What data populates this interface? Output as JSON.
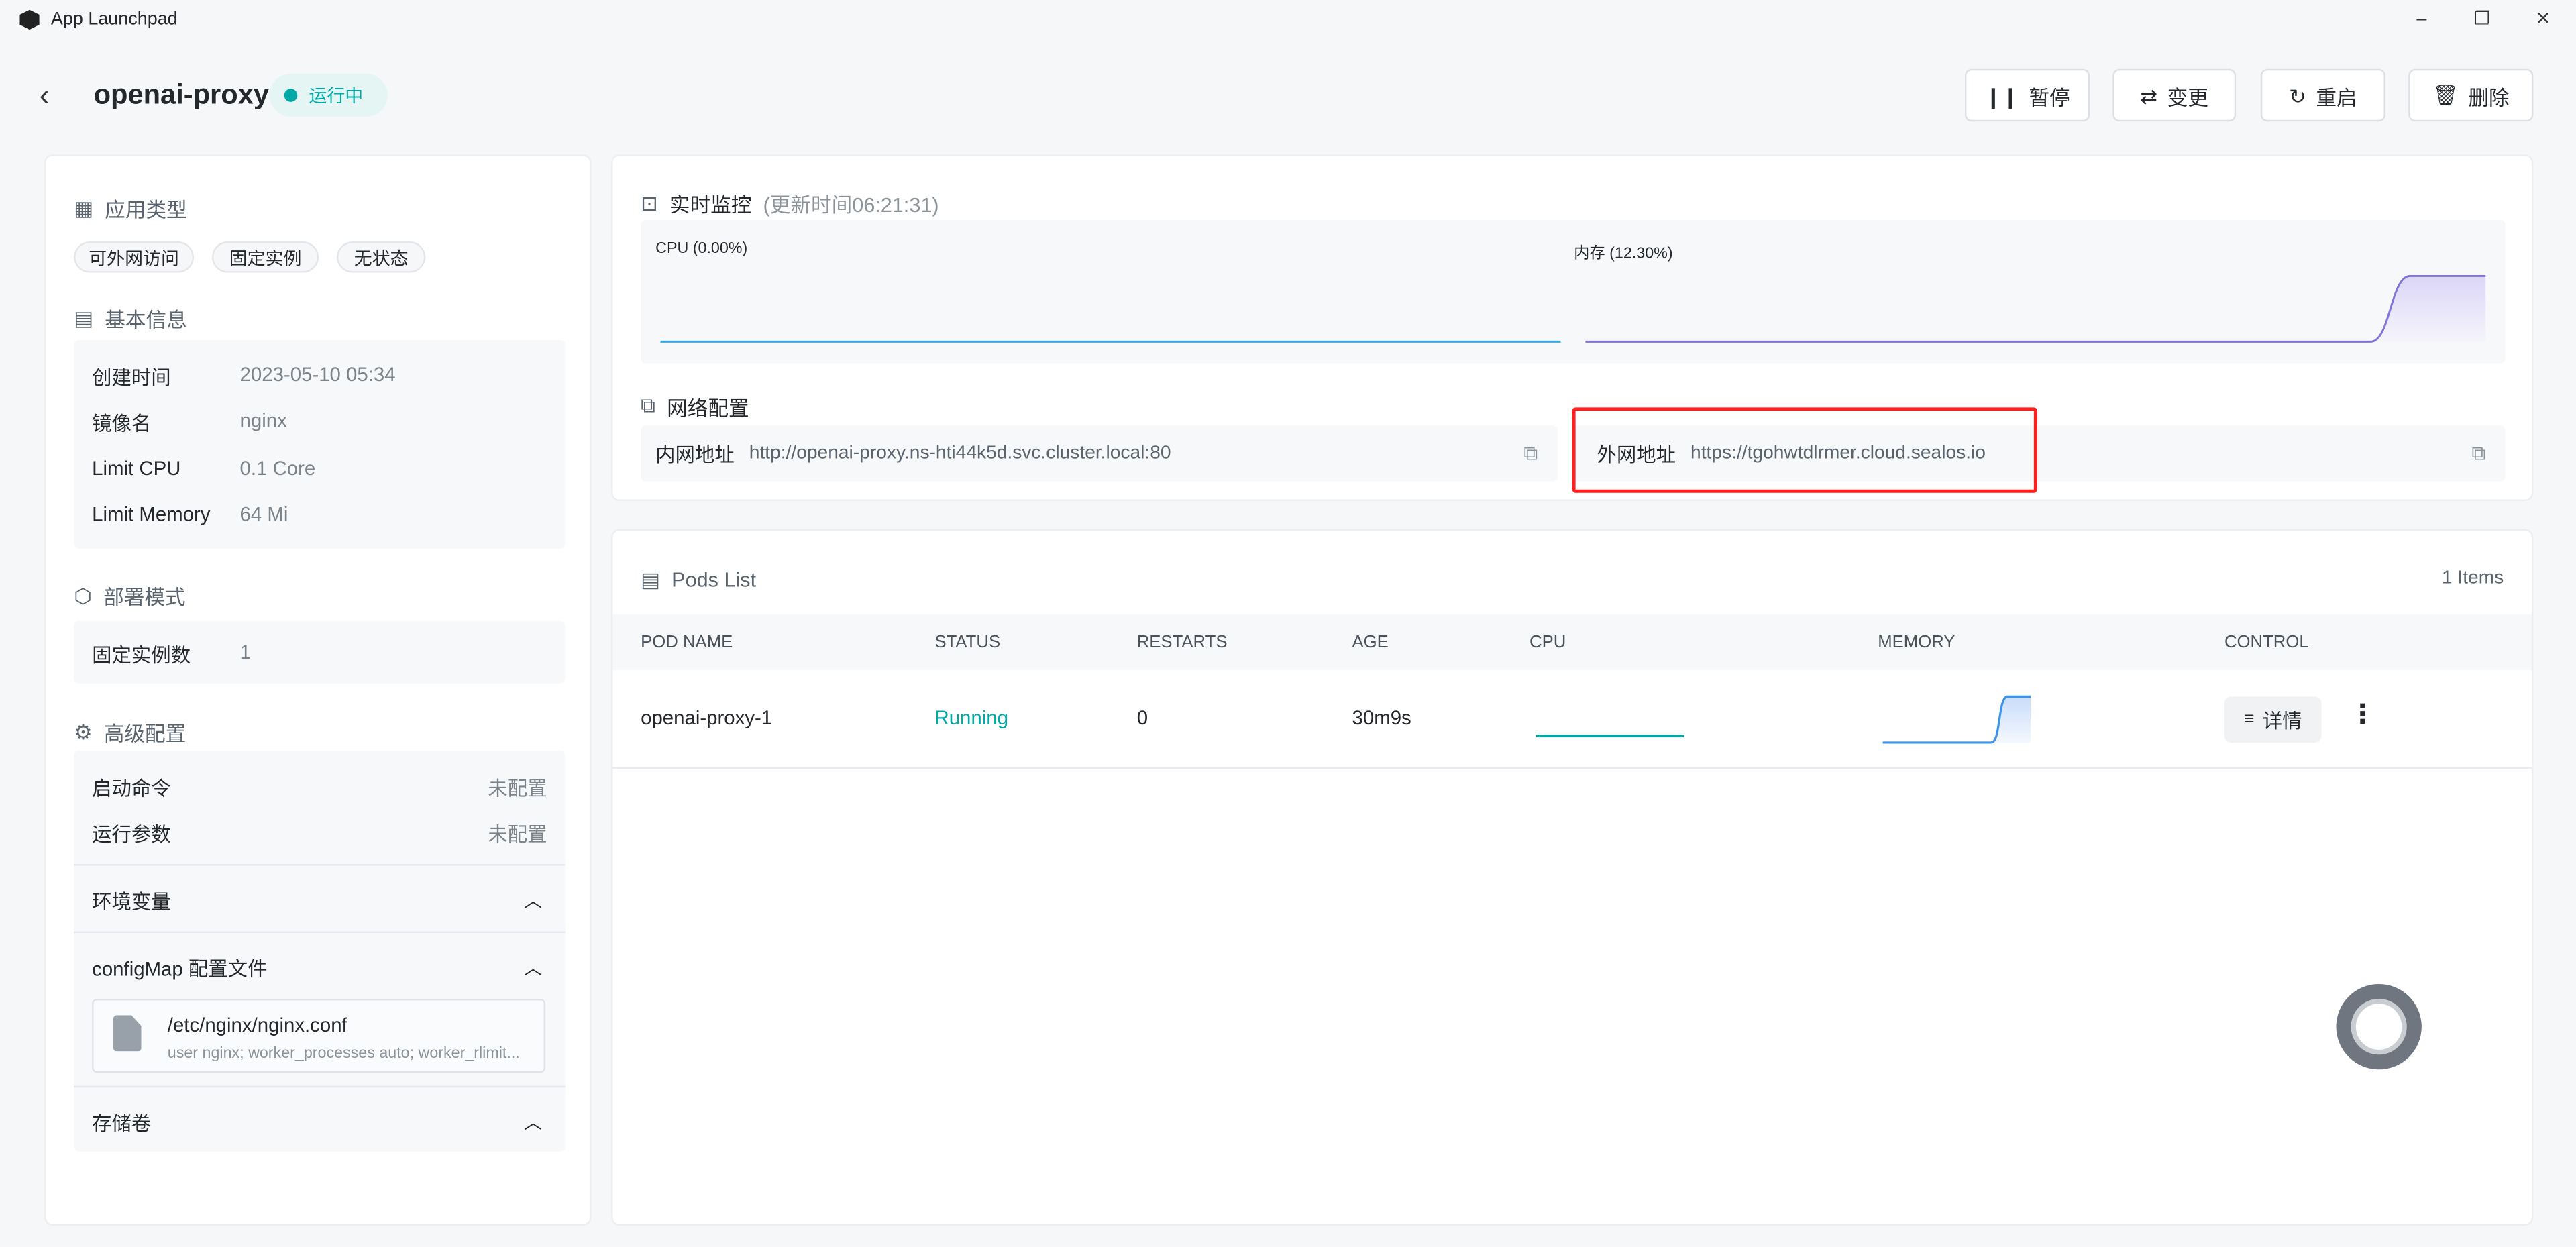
{
  "window": {
    "title": "App Launchpad",
    "minimize": "–",
    "maximize": "❐",
    "close": "✕"
  },
  "header": {
    "app_name": "openai-proxy",
    "status": "运行中",
    "status_color": "#00a9a6"
  },
  "actions": {
    "pause": "暂停",
    "change": "变更",
    "restart": "重启",
    "delete": "删除"
  },
  "left": {
    "app_type": {
      "title": "应用类型",
      "tags": [
        "可外网访问",
        "固定实例",
        "无状态"
      ]
    },
    "basic": {
      "title": "基本信息",
      "rows": [
        {
          "label": "创建时间",
          "value": "2023-05-10 05:34"
        },
        {
          "label": "镜像名",
          "value": "nginx"
        },
        {
          "label": "Limit CPU",
          "value": "0.1 Core"
        },
        {
          "label": "Limit Memory",
          "value": "64 Mi"
        }
      ]
    },
    "deploy": {
      "title": "部署模式",
      "label": "固定实例数",
      "value": "1"
    },
    "advanced": {
      "title": "高级配置",
      "start_cmd": {
        "label": "启动命令",
        "value": "未配置"
      },
      "run_args": {
        "label": "运行参数",
        "value": "未配置"
      },
      "env": "环境变量",
      "configmap": "configMap 配置文件",
      "file": {
        "path": "/etc/nginx/nginx.conf",
        "preview": "user nginx; worker_processes auto; worker_rlimit..."
      },
      "storage": "存储卷"
    }
  },
  "monitor": {
    "title": "实时监控",
    "updated": "(更新时间06:21:31)",
    "cpu_label": "CPU",
    "cpu_value": "(0.00%)",
    "mem_label": "内存",
    "mem_value": "(12.30%)",
    "cpu_color": "#36a9e8",
    "mem_color": "#8172d8"
  },
  "network": {
    "title": "网络配置",
    "inner_label": "内网地址",
    "inner_url": "http://openai-proxy.ns-hti44k5d.svc.cluster.local:80",
    "outer_label": "外网地址",
    "outer_url": "https://tgohwtdlrmer.cloud.sealos.io"
  },
  "pods": {
    "title": "Pods List",
    "count": "1 Items",
    "columns": [
      "POD NAME",
      "STATUS",
      "RESTARTS",
      "AGE",
      "CPU",
      "MEMORY",
      "CONTROL"
    ],
    "rows": [
      {
        "name": "openai-proxy-1",
        "status": "Running",
        "restarts": "0",
        "age": "30m9s",
        "detail": "详情"
      }
    ]
  }
}
